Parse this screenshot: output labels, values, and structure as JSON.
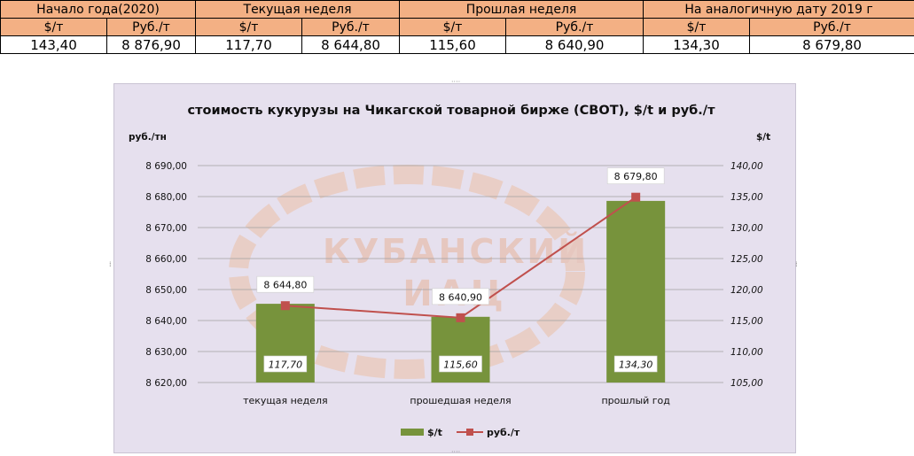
{
  "table": {
    "periods": [
      "Начало года(2020)",
      "Текущая неделя",
      "Прошлая неделя",
      "На аналогичную дату 2019 г"
    ],
    "units": [
      "$/т",
      "Руб./т",
      "$/т",
      "Руб./т",
      "$/т",
      "Руб./т",
      "$/т",
      "Руб./т"
    ],
    "values": [
      "143,40",
      "8 876,90",
      "117,70",
      "8 644,80",
      "115,60",
      "8 640,90",
      "134,30",
      "8 679,80"
    ]
  },
  "watermark": {
    "line1": "КУБАНСКИЙ",
    "line2": "ИАЦ"
  },
  "chart_data": {
    "type": "bar",
    "title": "стоимость кукурузы на Чикагской товарной бирже (CBOT), $/t и руб./т",
    "left_axis_label": "руб./тн",
    "right_axis_label": "$/t",
    "categories": [
      "текущая неделя",
      "прошедшая неделя",
      "прошлый год"
    ],
    "series": [
      {
        "name": "$/t",
        "type": "bar",
        "axis": "right",
        "color": "#77933c",
        "values": [
          117.7,
          115.6,
          134.3
        ],
        "labels": [
          "117,70",
          "115,60",
          "134,30"
        ]
      },
      {
        "name": "руб./т",
        "type": "line",
        "axis": "left",
        "color": "#c0504d",
        "values": [
          8644.8,
          8640.9,
          8679.8
        ],
        "labels": [
          "8 644,80",
          "8 640,90",
          "8 679,80"
        ]
      }
    ],
    "left_axis": {
      "min": 8620,
      "max": 8690,
      "ticks": [
        "8 620,00",
        "8 630,00",
        "8 640,00",
        "8 650,00",
        "8 660,00",
        "8 670,00",
        "8 680,00",
        "8 690,00"
      ]
    },
    "right_axis": {
      "min": 105,
      "max": 140,
      "ticks": [
        "105,00",
        "110,00",
        "115,00",
        "120,00",
        "125,00",
        "130,00",
        "135,00",
        "140,00"
      ]
    },
    "grid": true,
    "legend_position": "bottom"
  }
}
